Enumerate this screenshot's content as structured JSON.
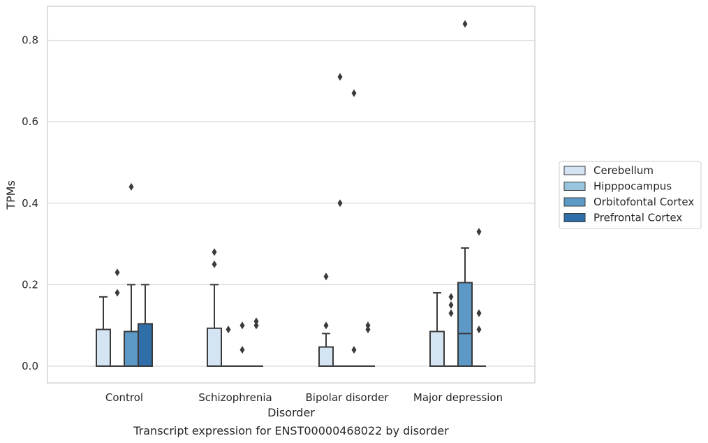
{
  "caption": "Transcript expression for ENST00000468022 by disorder",
  "chart_data": {
    "type": "box",
    "title": "",
    "xlabel": "Disorder",
    "ylabel": "TPMs",
    "ylim": [
      -0.04,
      0.885
    ],
    "yticks": [
      0.0,
      0.2,
      0.4,
      0.6,
      0.8
    ],
    "ytick_labels": [
      "0.0",
      "0.2",
      "0.4",
      "0.6",
      "0.8"
    ],
    "grid": "horizontal",
    "legend_position": "right",
    "categories": [
      "Control",
      "Schizophrenia",
      "Bipolar disorder",
      "Major depression"
    ],
    "series": [
      {
        "name": "Cerebellum",
        "color": "#d4e4f3",
        "boxes": [
          {
            "q1": 0.0,
            "median": 0.0,
            "q3": 0.09,
            "whisker_low": 0.0,
            "whisker_high": 0.17,
            "outliers": []
          },
          {
            "q1": 0.0,
            "median": 0.0,
            "q3": 0.093,
            "whisker_low": 0.0,
            "whisker_high": 0.2,
            "outliers": [
              0.28,
              0.25
            ]
          },
          {
            "q1": 0.0,
            "median": 0.0,
            "q3": 0.047,
            "whisker_low": 0.0,
            "whisker_high": 0.08,
            "outliers": [
              0.22,
              0.1
            ]
          },
          {
            "q1": 0.0,
            "median": 0.0,
            "q3": 0.085,
            "whisker_low": 0.0,
            "whisker_high": 0.18,
            "outliers": []
          }
        ]
      },
      {
        "name": "Hipppocampus",
        "color": "#9ac5df",
        "boxes": [
          {
            "q1": 0.0,
            "median": 0.0,
            "q3": 0.0,
            "whisker_low": 0.0,
            "whisker_high": 0.0,
            "outliers": [
              0.23,
              0.18
            ]
          },
          {
            "q1": 0.0,
            "median": 0.0,
            "q3": 0.0,
            "whisker_low": 0.0,
            "whisker_high": 0.0,
            "outliers": [
              0.09
            ]
          },
          {
            "q1": 0.0,
            "median": 0.0,
            "q3": 0.0,
            "whisker_low": 0.0,
            "whisker_high": 0.0,
            "outliers": [
              0.71,
              0.4
            ]
          },
          {
            "q1": 0.0,
            "median": 0.0,
            "q3": 0.0,
            "whisker_low": 0.0,
            "whisker_high": 0.0,
            "outliers": [
              0.17,
              0.15,
              0.13
            ]
          }
        ]
      },
      {
        "name": "Orbitofontal Cortex",
        "color": "#5c99c6",
        "boxes": [
          {
            "q1": 0.0,
            "median": 0.0,
            "q3": 0.085,
            "whisker_low": 0.0,
            "whisker_high": 0.2,
            "outliers": [
              0.44
            ]
          },
          {
            "q1": 0.0,
            "median": 0.0,
            "q3": 0.0,
            "whisker_low": 0.0,
            "whisker_high": 0.0,
            "outliers": [
              0.1,
              0.04
            ]
          },
          {
            "q1": 0.0,
            "median": 0.0,
            "q3": 0.0,
            "whisker_low": 0.0,
            "whisker_high": 0.0,
            "outliers": [
              0.67,
              0.04
            ]
          },
          {
            "q1": 0.0,
            "median": 0.08,
            "q3": 0.205,
            "whisker_low": 0.0,
            "whisker_high": 0.29,
            "outliers": [
              0.84
            ]
          }
        ]
      },
      {
        "name": "Prefrontal Cortex",
        "color": "#2f6ea8",
        "boxes": [
          {
            "q1": 0.0,
            "median": 0.0,
            "q3": 0.104,
            "whisker_low": 0.0,
            "whisker_high": 0.2,
            "outliers": []
          },
          {
            "q1": 0.0,
            "median": 0.0,
            "q3": 0.0,
            "whisker_low": 0.0,
            "whisker_high": 0.0,
            "outliers": [
              0.11,
              0.1
            ]
          },
          {
            "q1": 0.0,
            "median": 0.0,
            "q3": 0.0,
            "whisker_low": 0.0,
            "whisker_high": 0.0,
            "outliers": [
              0.1,
              0.09
            ]
          },
          {
            "q1": 0.0,
            "median": 0.0,
            "q3": 0.0,
            "whisker_low": 0.0,
            "whisker_high": 0.0,
            "outliers": [
              0.33,
              0.13,
              0.09
            ]
          }
        ]
      }
    ]
  }
}
